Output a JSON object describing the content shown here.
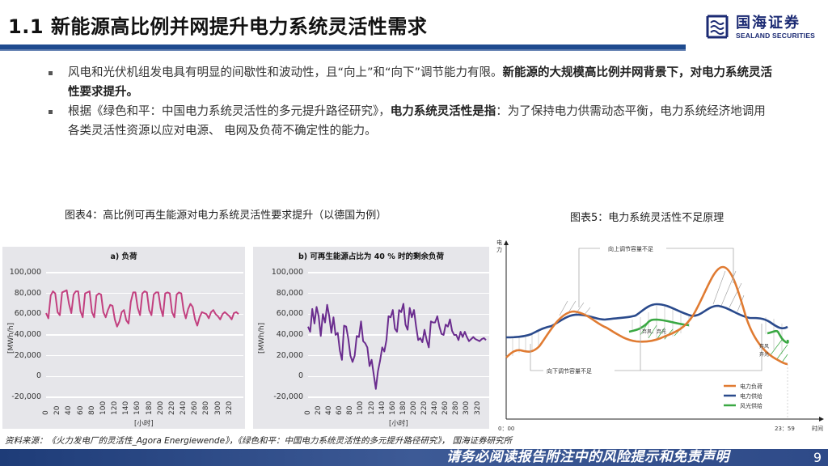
{
  "header": {
    "title": "1.1 新能源高比例并网提升电力系统灵活性需求",
    "logo_cn": "国海证券",
    "logo_en": "SEALAND SECURITIES",
    "brand_color": "#1f4b8f"
  },
  "bullets": [
    {
      "normal_1": "风电和光伏机组发电具有明显的间歇性和波动性，且“向上”和“向下”调节能力有限。",
      "bold_1": "新能源的大规模高比例并网背景下，对电力系统灵活性要求提升。"
    },
    {
      "normal_1": "根据《绿色和平：中国电力系统灵活性的多元提升路径研究》，",
      "bold_1": "电力系统灵活性是指",
      "normal_2": "：为了保持电力供需动态平衡，电力系统经济地调用各类灵活性资源以应对电源、 电网及负荷不确定性的能力。"
    }
  ],
  "figure4": {
    "caption": "图表4：高比例可再生能源对电力系统灵活性要求提升（以德国为例）"
  },
  "figure5": {
    "caption": "图表5：电力系统灵活性不足原理"
  },
  "chart_data": [
    {
      "type": "line",
      "title": "a) 负荷",
      "xlabel": "[小时]",
      "ylabel": "[MWh/h]",
      "ylim": [
        -20000,
        100000
      ],
      "yticks": [
        "100,000",
        "80,000",
        "60,000",
        "40,000",
        "20,000",
        "0",
        "-20,000"
      ],
      "xticks": [
        "0",
        "20",
        "40",
        "60",
        "80",
        "100",
        "120",
        "140",
        "160",
        "180",
        "200",
        "220",
        "240",
        "260",
        "280",
        "300",
        "320"
      ],
      "xlim": [
        0,
        336
      ],
      "grid": true,
      "color": "#c2407f",
      "x": [
        0,
        4,
        8,
        12,
        16,
        20,
        24,
        28,
        32,
        36,
        40,
        44,
        48,
        52,
        56,
        60,
        64,
        68,
        72,
        76,
        80,
        84,
        88,
        92,
        96,
        100,
        104,
        108,
        112,
        116,
        120,
        124,
        128,
        132,
        136,
        140,
        144,
        148,
        152,
        156,
        160,
        164,
        168,
        172,
        176,
        180,
        184,
        188,
        192,
        196,
        200,
        204,
        208,
        212,
        216,
        220,
        224,
        228,
        232,
        236,
        240,
        244,
        248,
        252,
        256,
        260,
        264,
        268,
        272,
        276,
        280,
        284,
        288,
        292,
        296,
        300,
        304,
        308,
        312,
        316,
        320,
        324,
        328,
        332,
        336
      ],
      "values": [
        61000,
        56000,
        78000,
        82000,
        80000,
        62000,
        59000,
        81000,
        82000,
        83000,
        70000,
        61000,
        79000,
        82000,
        82000,
        63000,
        57000,
        80000,
        81000,
        82000,
        62000,
        57000,
        78000,
        80000,
        79000,
        62000,
        57000,
        64000,
        69000,
        68000,
        55000,
        48000,
        53000,
        62000,
        64000,
        54000,
        51000,
        72000,
        81000,
        81000,
        66000,
        59000,
        80000,
        82000,
        81000,
        64000,
        59000,
        79000,
        81000,
        81000,
        66000,
        58000,
        80000,
        81000,
        80000,
        62000,
        57000,
        79000,
        81000,
        80000,
        64000,
        56000,
        65000,
        70000,
        67000,
        55000,
        49000,
        57000,
        62000,
        61000,
        60000,
        56000,
        62000,
        64000,
        60000,
        58000,
        55000,
        60000,
        62000,
        60000,
        58000,
        55000,
        61000,
        62000,
        60000
      ]
    },
    {
      "type": "line",
      "title": "b) 可再生能源占比为 40 % 时的剩余负荷",
      "xlabel": "[小时]",
      "ylabel": "[MWh/h]",
      "ylim": [
        -20000,
        100000
      ],
      "yticks": [
        "100,000",
        "80,000",
        "60,000",
        "40,000",
        "20,000",
        "0",
        "-20,000"
      ],
      "xticks": [
        "0",
        "20",
        "40",
        "60",
        "80",
        "100",
        "120",
        "140",
        "160",
        "180",
        "200",
        "220",
        "240",
        "260",
        "280",
        "300",
        "320"
      ],
      "xlim": [
        0,
        336
      ],
      "grid": true,
      "color": "#6a2c8e",
      "x": [
        0,
        4,
        8,
        12,
        16,
        20,
        24,
        28,
        32,
        36,
        40,
        44,
        48,
        52,
        56,
        60,
        64,
        68,
        72,
        76,
        80,
        84,
        88,
        92,
        96,
        100,
        104,
        108,
        112,
        116,
        120,
        124,
        128,
        132,
        136,
        140,
        144,
        148,
        152,
        156,
        160,
        164,
        168,
        172,
        176,
        180,
        184,
        188,
        192,
        196,
        200,
        204,
        208,
        212,
        216,
        220,
        224,
        228,
        232,
        236,
        240,
        244,
        248,
        252,
        256,
        260,
        264,
        268,
        272,
        276,
        280,
        284,
        288,
        292,
        296,
        300,
        304,
        308,
        312,
        316,
        320,
        324,
        328,
        332,
        336
      ],
      "values": [
        48000,
        43000,
        65000,
        51000,
        67000,
        58000,
        39000,
        60000,
        52000,
        69000,
        58000,
        42000,
        57000,
        40000,
        42000,
        25000,
        16000,
        49000,
        48000,
        36000,
        20000,
        14000,
        20000,
        39000,
        38000,
        53000,
        34000,
        32000,
        28000,
        10000,
        16000,
        2000,
        -12000,
        5000,
        15000,
        28000,
        24000,
        35000,
        58000,
        57000,
        64000,
        46000,
        43000,
        64000,
        62000,
        70000,
        50000,
        45000,
        66000,
        57000,
        64000,
        48000,
        35000,
        37000,
        33000,
        45000,
        35000,
        28000,
        53000,
        52000,
        52000,
        58000,
        48000,
        41000,
        40000,
        50000,
        48000,
        55000,
        44000,
        40000,
        40000,
        35000,
        43000,
        38000,
        43000,
        38000,
        34000,
        36000,
        38000,
        36000,
        35000,
        34000,
        36000,
        37000,
        35000
      ]
    },
    {
      "type": "line",
      "title": "电力系统灵活性不足原理",
      "xlabel": "时间",
      "ylabel": "电力",
      "xticks": [
        "0：00",
        "23：59"
      ],
      "legend": [
        "电力负荷",
        "电力供给",
        "风光供给"
      ],
      "legend_position": "lower right",
      "series": [
        {
          "name": "电力负荷",
          "color": "#e07b32"
        },
        {
          "name": "电力供给",
          "color": "#2a4a8c"
        },
        {
          "name": "风光供给",
          "color": "#3aa843"
        }
      ],
      "annotations": [
        "向上调节容量不足",
        "向下调节容量不足",
        "弃风、弃光",
        "弃风",
        "弃光"
      ]
    }
  ],
  "source": "资料来源：《火力发电厂的灵活性_Agora Energiewende》，《绿色和平：中国电力系统灵活性的多元提升路径研究》， 国海证券研究所",
  "footer": {
    "disclaimer": "请务必阅读报告附注中的风险提示和免责声明",
    "page_number": "9"
  }
}
